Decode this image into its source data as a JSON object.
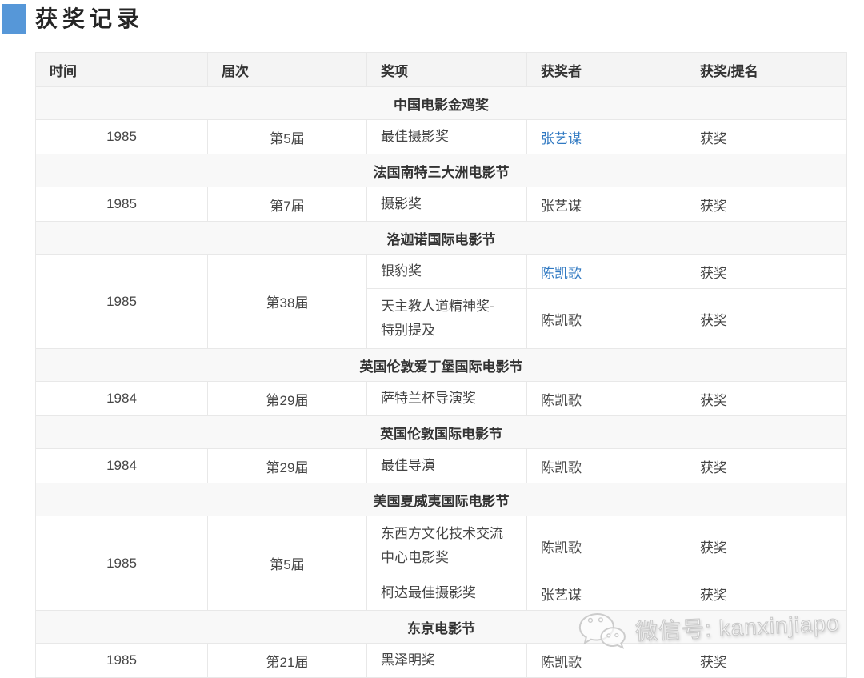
{
  "page": {
    "title": "获奖记录",
    "accent_color": "#5697d8",
    "link_color": "#3079c2"
  },
  "table": {
    "columns": [
      "时间",
      "届次",
      "奖项",
      "获奖者",
      "获奖/提名"
    ],
    "groups": [
      {
        "festival": "中国电影金鸡奖",
        "rows": [
          {
            "year": "1985",
            "session": "第5届",
            "awards": [
              {
                "award": "最佳摄影奖",
                "winner": "张艺谋",
                "winner_link": true,
                "result": "获奖"
              }
            ]
          }
        ]
      },
      {
        "festival": "法国南特三大洲电影节",
        "rows": [
          {
            "year": "1985",
            "session": "第7届",
            "awards": [
              {
                "award": "摄影奖",
                "winner": "张艺谋",
                "winner_link": false,
                "result": "获奖"
              }
            ]
          }
        ]
      },
      {
        "festival": "洛迦诺国际电影节",
        "rows": [
          {
            "year": "1985",
            "session": "第38届",
            "awards": [
              {
                "award": "银豹奖",
                "winner": "陈凯歌",
                "winner_link": true,
                "result": "获奖"
              },
              {
                "award": "天主教人道精神奖-\n特别提及",
                "winner": "陈凯歌",
                "winner_link": false,
                "result": "获奖",
                "two_line": true
              }
            ]
          }
        ]
      },
      {
        "festival": "英国伦敦爱丁堡国际电影节",
        "rows": [
          {
            "year": "1984",
            "session": "第29届",
            "awards": [
              {
                "award": "萨特兰杯导演奖",
                "winner": "陈凯歌",
                "winner_link": false,
                "result": "获奖"
              }
            ]
          }
        ]
      },
      {
        "festival": "英国伦敦国际电影节",
        "rows": [
          {
            "year": "1984",
            "session": "第29届",
            "awards": [
              {
                "award": "最佳导演",
                "winner": "陈凯歌",
                "winner_link": false,
                "result": "获奖"
              }
            ]
          }
        ]
      },
      {
        "festival": "美国夏威夷国际电影节",
        "rows": [
          {
            "year": "1985",
            "session": "第5届",
            "awards": [
              {
                "award": "东西方文化技术交流\n中心电影奖",
                "winner": "陈凯歌",
                "winner_link": false,
                "result": "获奖",
                "two_line": true
              },
              {
                "award": "柯达最佳摄影奖",
                "winner": "张艺谋",
                "winner_link": false,
                "result": "获奖"
              }
            ]
          }
        ]
      },
      {
        "festival": "东京电影节",
        "rows": [
          {
            "year": "1985",
            "session": "第21届",
            "awards": [
              {
                "award": "黑泽明奖",
                "winner": "陈凯歌",
                "winner_link": false,
                "result": "获奖"
              }
            ]
          }
        ]
      }
    ]
  },
  "watermark": {
    "text": "微信号: kanxinjiapo",
    "icon": "wechat-logo"
  }
}
